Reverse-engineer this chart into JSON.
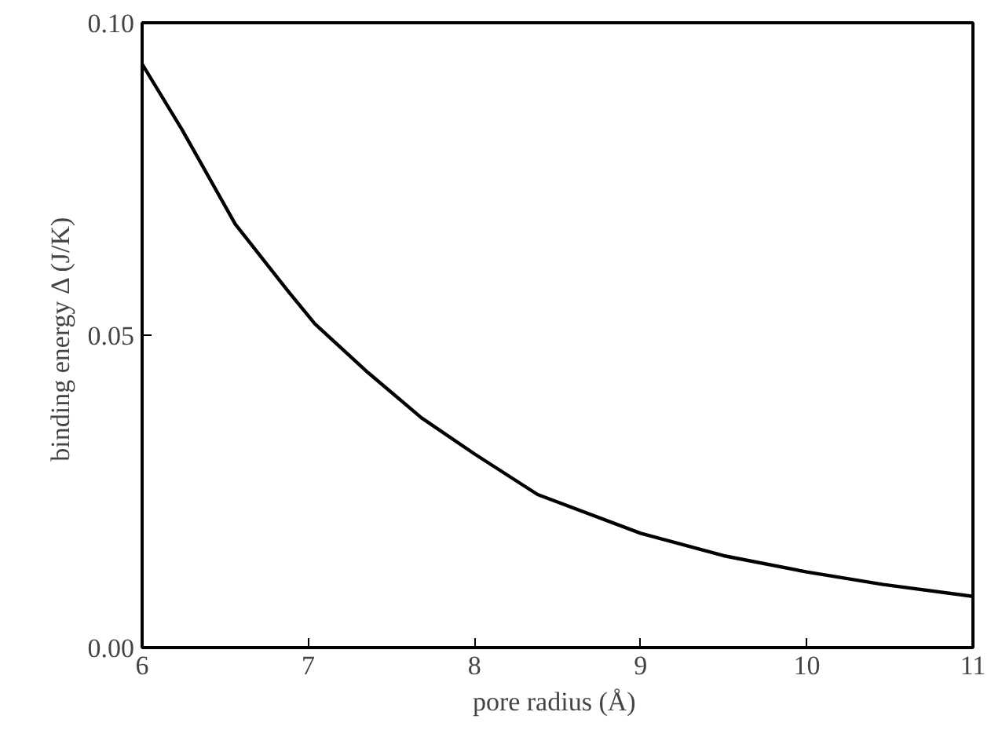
{
  "chart_data": {
    "type": "line",
    "xlabel": "pore radius  (Å)",
    "ylabel": "binding energy Δ  (J/K)",
    "x": [
      6.0,
      6.24,
      6.56,
      6.88,
      7.04,
      7.36,
      7.68,
      8.0,
      8.38,
      9.0,
      9.5,
      10.0,
      10.46,
      11.0
    ],
    "series": [
      {
        "color": "#000000",
        "values": [
          0.0934,
          0.0829,
          0.0678,
          0.057,
          0.0518,
          0.044,
          0.0368,
          0.031,
          0.0245,
          0.0183,
          0.0147,
          0.0121,
          0.0101,
          0.0082
        ]
      }
    ],
    "xlim": [
      6,
      11
    ],
    "ylim": [
      0,
      0.1
    ],
    "xticks": [
      6,
      7,
      8,
      9,
      10,
      11
    ],
    "yticks": [
      {
        "value": 0,
        "label": "0.00"
      },
      {
        "value": 0.05,
        "label": "0.05"
      },
      {
        "value": 0.1,
        "label": "0.10"
      }
    ],
    "grid": false,
    "marker": "none",
    "line_style": "solid"
  }
}
